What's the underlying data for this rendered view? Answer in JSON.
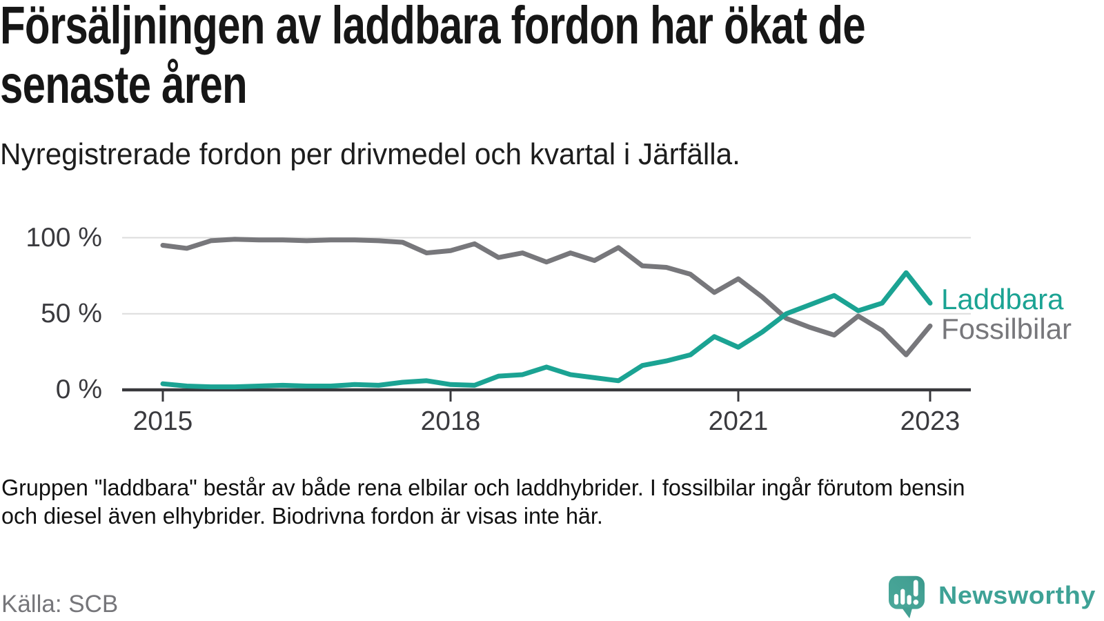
{
  "header": {
    "title_line1": "Försäljningen av laddbara fordon har ökat de",
    "title_line2": "senaste åren",
    "subtitle": "Nyregistrerade fordon per drivmedel och kvartal i Järfälla."
  },
  "chart_data": {
    "type": "line",
    "unit": "%",
    "x_range": {
      "start": "2015 Q1",
      "end": "2023 Q1",
      "step": "quarter"
    },
    "ylim": [
      0,
      100
    ],
    "grid": "horizontal",
    "legend_position": "right-end-of-lines",
    "series": [
      {
        "name": "Laddbara",
        "color": "#1ba393",
        "values": [
          4,
          2.5,
          2,
          2,
          2.5,
          3,
          2.5,
          2.5,
          3.5,
          3,
          5,
          6,
          3.5,
          3,
          9,
          10,
          15,
          10,
          8,
          6,
          16,
          19,
          23,
          35,
          28,
          38,
          50,
          56,
          62,
          52,
          57,
          77,
          57
        ]
      },
      {
        "name": "Fossilbilar",
        "color": "#77777b",
        "values": [
          95,
          93,
          98,
          99,
          98.5,
          98.5,
          98,
          98.5,
          98.5,
          98,
          97,
          90,
          91.5,
          96,
          87,
          90,
          84,
          90,
          85,
          93.5,
          81.5,
          80.5,
          76,
          64,
          73,
          61,
          47,
          41,
          36,
          48.5,
          39,
          23,
          42
        ]
      }
    ],
    "y_ticks": [
      {
        "value": 0,
        "label": "0 %"
      },
      {
        "value": 50,
        "label": "50 %"
      },
      {
        "value": 100,
        "label": "100 %"
      }
    ],
    "x_ticks": [
      {
        "label": "2015",
        "quarter_index": 0
      },
      {
        "label": "2018",
        "quarter_index": 12
      },
      {
        "label": "2021",
        "quarter_index": 24
      },
      {
        "label": "2023",
        "quarter_index": 32
      }
    ],
    "colors": {
      "grid": "#dcdcdc",
      "axis": "#38383c",
      "tick_text": "#3a3a3e"
    }
  },
  "footnote": {
    "line1": "Gruppen \"laddbara\" består av både rena elbilar och laddhybrider. I fossilbilar ingår förutom bensin",
    "line2": "och diesel även elhybrider. Biodrivna fordon är visas inte här."
  },
  "source": {
    "label": "Källa: SCB"
  },
  "branding": {
    "logo_text": "Newsworthy",
    "logo_color": "#3ea296",
    "icon_color": "#45a296"
  }
}
